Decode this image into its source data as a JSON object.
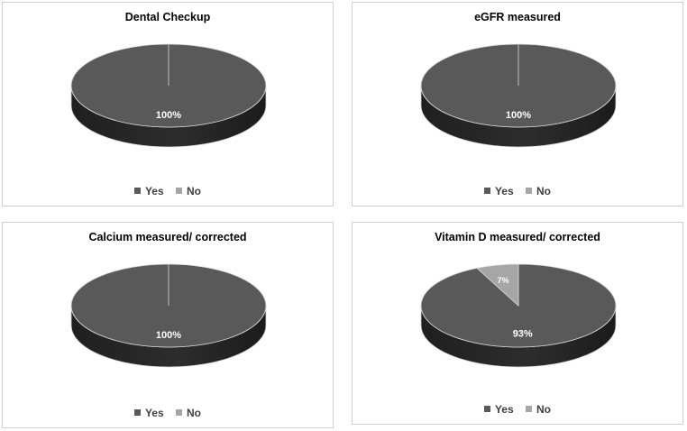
{
  "colors": {
    "yes": "#595959",
    "no": "#a6a6a6",
    "outline": "#d9d9d9"
  },
  "chart_data": [
    {
      "type": "pie",
      "title": "Dental Checkup",
      "categories": [
        "Yes",
        "No"
      ],
      "values": [
        100,
        0
      ],
      "data_labels": [
        "100%",
        ""
      ],
      "legend": "bottom"
    },
    {
      "type": "pie",
      "title": "eGFR measured",
      "categories": [
        "Yes",
        "No"
      ],
      "values": [
        100,
        0
      ],
      "data_labels": [
        "100%",
        ""
      ],
      "legend": "bottom"
    },
    {
      "type": "pie",
      "title": "Calcium measured/ corrected",
      "categories": [
        "Yes",
        "No"
      ],
      "values": [
        100,
        0
      ],
      "data_labels": [
        "100%",
        ""
      ],
      "legend": "bottom"
    },
    {
      "type": "pie",
      "title": "Vitamin D measured/ corrected",
      "categories": [
        "Yes",
        "No"
      ],
      "values": [
        93,
        7
      ],
      "data_labels": [
        "93%",
        "7%"
      ],
      "legend": "bottom"
    }
  ]
}
